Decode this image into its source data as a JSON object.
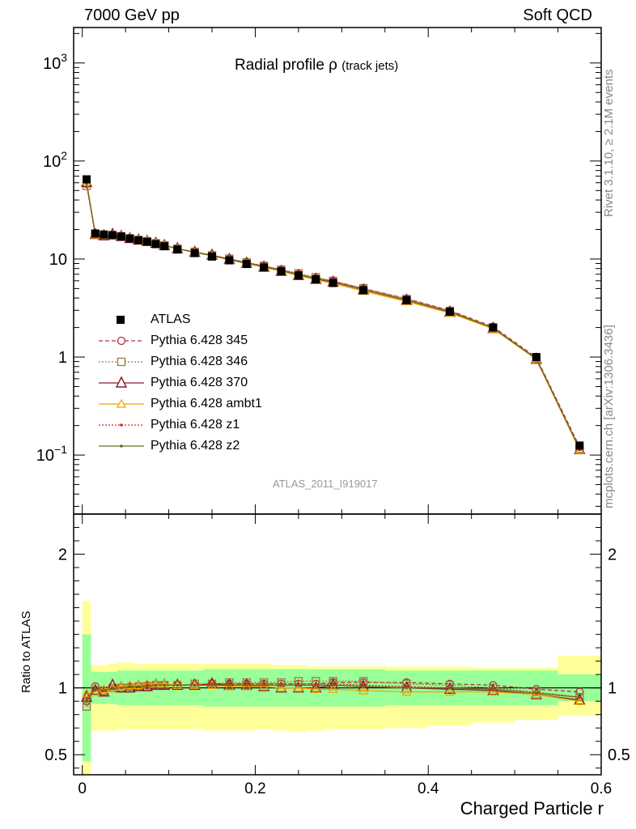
{
  "header": {
    "left": "7000 GeV pp",
    "right": "Soft QCD"
  },
  "side_text": {
    "top": "Rivet 3.1.10, ≥ 2.1M events",
    "bottom": "mcplots.cern.ch [arXiv:1306.3436]"
  },
  "plot_title": {
    "main": "Radial profile ρ",
    "sub": "(track jets)"
  },
  "analysis_id": "ATLAS_2011_I919017",
  "colors": {
    "atlas": "#000000",
    "p345": "#b03040",
    "p346": "#a07840",
    "p370": "#8b1a2b",
    "ambt1": "#f0a500",
    "z1": "#e02020",
    "z2": "#6b6b1a",
    "band_inner": "#99ff99",
    "band_outer": "#ffff99"
  },
  "chart_data": {
    "type": "line",
    "xlabel": "Charged Particle r",
    "ylabel_ratio": "Ratio to ATLAS",
    "x_ticks": [
      "0",
      "0.2",
      "0.4",
      "0.6"
    ],
    "x_range": [
      -0.01,
      0.6
    ],
    "main_y_scale": "log",
    "main_y_range": [
      0.025,
      2300
    ],
    "main_y_ticks": [
      "10−1",
      "1",
      "10",
      "102",
      "103"
    ],
    "ratio_y_range": [
      0.35,
      2.3
    ],
    "ratio_y_ticks": [
      "0.5",
      "1",
      "2"
    ],
    "legend": [
      {
        "label": "ATLAS",
        "style": "atlas"
      },
      {
        "label": "Pythia 6.428 345",
        "style": "p345"
      },
      {
        "label": "Pythia 6.428 346",
        "style": "p346"
      },
      {
        "label": "Pythia 6.428 370",
        "style": "p370"
      },
      {
        "label": "Pythia 6.428 ambt1",
        "style": "ambt1"
      },
      {
        "label": "Pythia 6.428 z1",
        "style": "z1"
      },
      {
        "label": "Pythia 6.428 z2",
        "style": "z2"
      }
    ],
    "x": [
      0.005,
      0.015,
      0.025,
      0.035,
      0.045,
      0.055,
      0.065,
      0.075,
      0.085,
      0.095,
      0.11,
      0.13,
      0.15,
      0.17,
      0.19,
      0.21,
      0.23,
      0.25,
      0.27,
      0.29,
      0.325,
      0.375,
      0.425,
      0.475,
      0.525,
      0.575
    ],
    "atlas": [
      65,
      18.2,
      17.8,
      17.5,
      17.0,
      16.2,
      15.5,
      15.0,
      14.2,
      13.5,
      12.5,
      11.5,
      10.6,
      9.7,
      8.9,
      8.2,
      7.5,
      6.8,
      6.2,
      5.7,
      4.8,
      3.8,
      2.9,
      2.0,
      1.0,
      0.125
    ],
    "atlas_ratio_band_inner": [
      [
        0.45,
        1.4
      ],
      [
        0.88,
        1.12
      ],
      [
        0.88,
        1.12
      ],
      [
        0.88,
        1.12
      ],
      [
        0.87,
        1.13
      ],
      [
        0.87,
        1.13
      ],
      [
        0.87,
        1.13
      ],
      [
        0.87,
        1.13
      ],
      [
        0.87,
        1.13
      ],
      [
        0.87,
        1.13
      ],
      [
        0.87,
        1.13
      ],
      [
        0.87,
        1.13
      ],
      [
        0.86,
        1.14
      ],
      [
        0.86,
        1.14
      ],
      [
        0.86,
        1.14
      ],
      [
        0.86,
        1.14
      ],
      [
        0.86,
        1.14
      ],
      [
        0.86,
        1.14
      ],
      [
        0.86,
        1.14
      ],
      [
        0.86,
        1.14
      ],
      [
        0.86,
        1.14
      ],
      [
        0.87,
        1.13
      ],
      [
        0.87,
        1.13
      ],
      [
        0.87,
        1.13
      ],
      [
        0.87,
        1.13
      ],
      [
        0.9,
        1.1
      ]
    ],
    "atlas_ratio_band_outer": [
      [
        0.35,
        1.65
      ],
      [
        0.68,
        1.17
      ],
      [
        0.68,
        1.17
      ],
      [
        0.68,
        1.18
      ],
      [
        0.69,
        1.19
      ],
      [
        0.69,
        1.19
      ],
      [
        0.69,
        1.18
      ],
      [
        0.69,
        1.18
      ],
      [
        0.69,
        1.18
      ],
      [
        0.69,
        1.18
      ],
      [
        0.69,
        1.18
      ],
      [
        0.69,
        1.18
      ],
      [
        0.68,
        1.18
      ],
      [
        0.68,
        1.18
      ],
      [
        0.68,
        1.18
      ],
      [
        0.69,
        1.18
      ],
      [
        0.68,
        1.17
      ],
      [
        0.67,
        1.17
      ],
      [
        0.68,
        1.16
      ],
      [
        0.69,
        1.16
      ],
      [
        0.69,
        1.16
      ],
      [
        0.7,
        1.16
      ],
      [
        0.72,
        1.16
      ],
      [
        0.74,
        1.15
      ],
      [
        0.76,
        1.15
      ],
      [
        0.79,
        1.24
      ]
    ],
    "series": [
      {
        "name": "Pythia 6.428 345",
        "style": "p345",
        "ratio": [
          0.9,
          1.01,
          0.97,
          1.0,
          1.0,
          1.01,
          1.01,
          1.02,
          1.02,
          1.02,
          1.02,
          1.02,
          1.03,
          1.03,
          1.03,
          1.03,
          1.03,
          1.03,
          1.03,
          1.04,
          1.04,
          1.04,
          1.03,
          1.02,
          0.99,
          0.97
        ]
      },
      {
        "name": "Pythia 6.428 346",
        "style": "p346",
        "ratio": [
          0.86,
          0.98,
          0.98,
          1.0,
          1.0,
          1.0,
          1.01,
          1.01,
          1.02,
          1.02,
          1.02,
          1.03,
          1.03,
          1.04,
          1.04,
          1.04,
          1.04,
          1.05,
          1.05,
          1.05,
          1.05,
          1.03,
          1.02,
          1.0,
          0.97,
          0.93
        ]
      },
      {
        "name": "Pythia 6.428 370",
        "style": "p370",
        "ratio": [
          0.93,
          0.98,
          0.97,
          1.02,
          1.0,
          1.0,
          1.01,
          1.01,
          1.02,
          1.02,
          1.02,
          1.02,
          1.03,
          1.02,
          1.02,
          1.01,
          1.0,
          1.0,
          1.0,
          1.02,
          1.01,
          1.0,
          0.99,
          0.98,
          0.95,
          0.91
        ]
      },
      {
        "name": "Pythia 6.428 ambt1",
        "style": "ambt1",
        "ratio": [
          0.96,
          0.97,
          0.99,
          1.0,
          1.01,
          1.02,
          1.02,
          1.03,
          1.03,
          1.03,
          1.02,
          1.02,
          1.02,
          1.01,
          1.01,
          1.01,
          1.0,
          1.0,
          0.99,
          0.99,
          0.98,
          0.97,
          0.97,
          0.97,
          0.95,
          0.9
        ]
      },
      {
        "name": "Pythia 6.428 z1",
        "style": "z1",
        "ratio": [
          0.91,
          0.99,
          0.98,
          1.0,
          1.0,
          1.01,
          1.01,
          1.02,
          1.02,
          1.02,
          1.02,
          1.02,
          1.03,
          1.03,
          1.03,
          1.03,
          1.03,
          1.03,
          1.03,
          1.03,
          1.02,
          1.01,
          1.0,
          0.99,
          0.96,
          0.93
        ]
      },
      {
        "name": "Pythia 6.428 z2",
        "style": "z2",
        "ratio": [
          0.9,
          0.99,
          0.98,
          1.0,
          1.0,
          1.01,
          1.01,
          1.01,
          1.02,
          1.02,
          1.02,
          1.02,
          1.02,
          1.02,
          1.02,
          1.02,
          1.02,
          1.02,
          1.02,
          1.02,
          1.01,
          1.0,
          1.0,
          0.99,
          0.96,
          0.93
        ]
      }
    ]
  }
}
